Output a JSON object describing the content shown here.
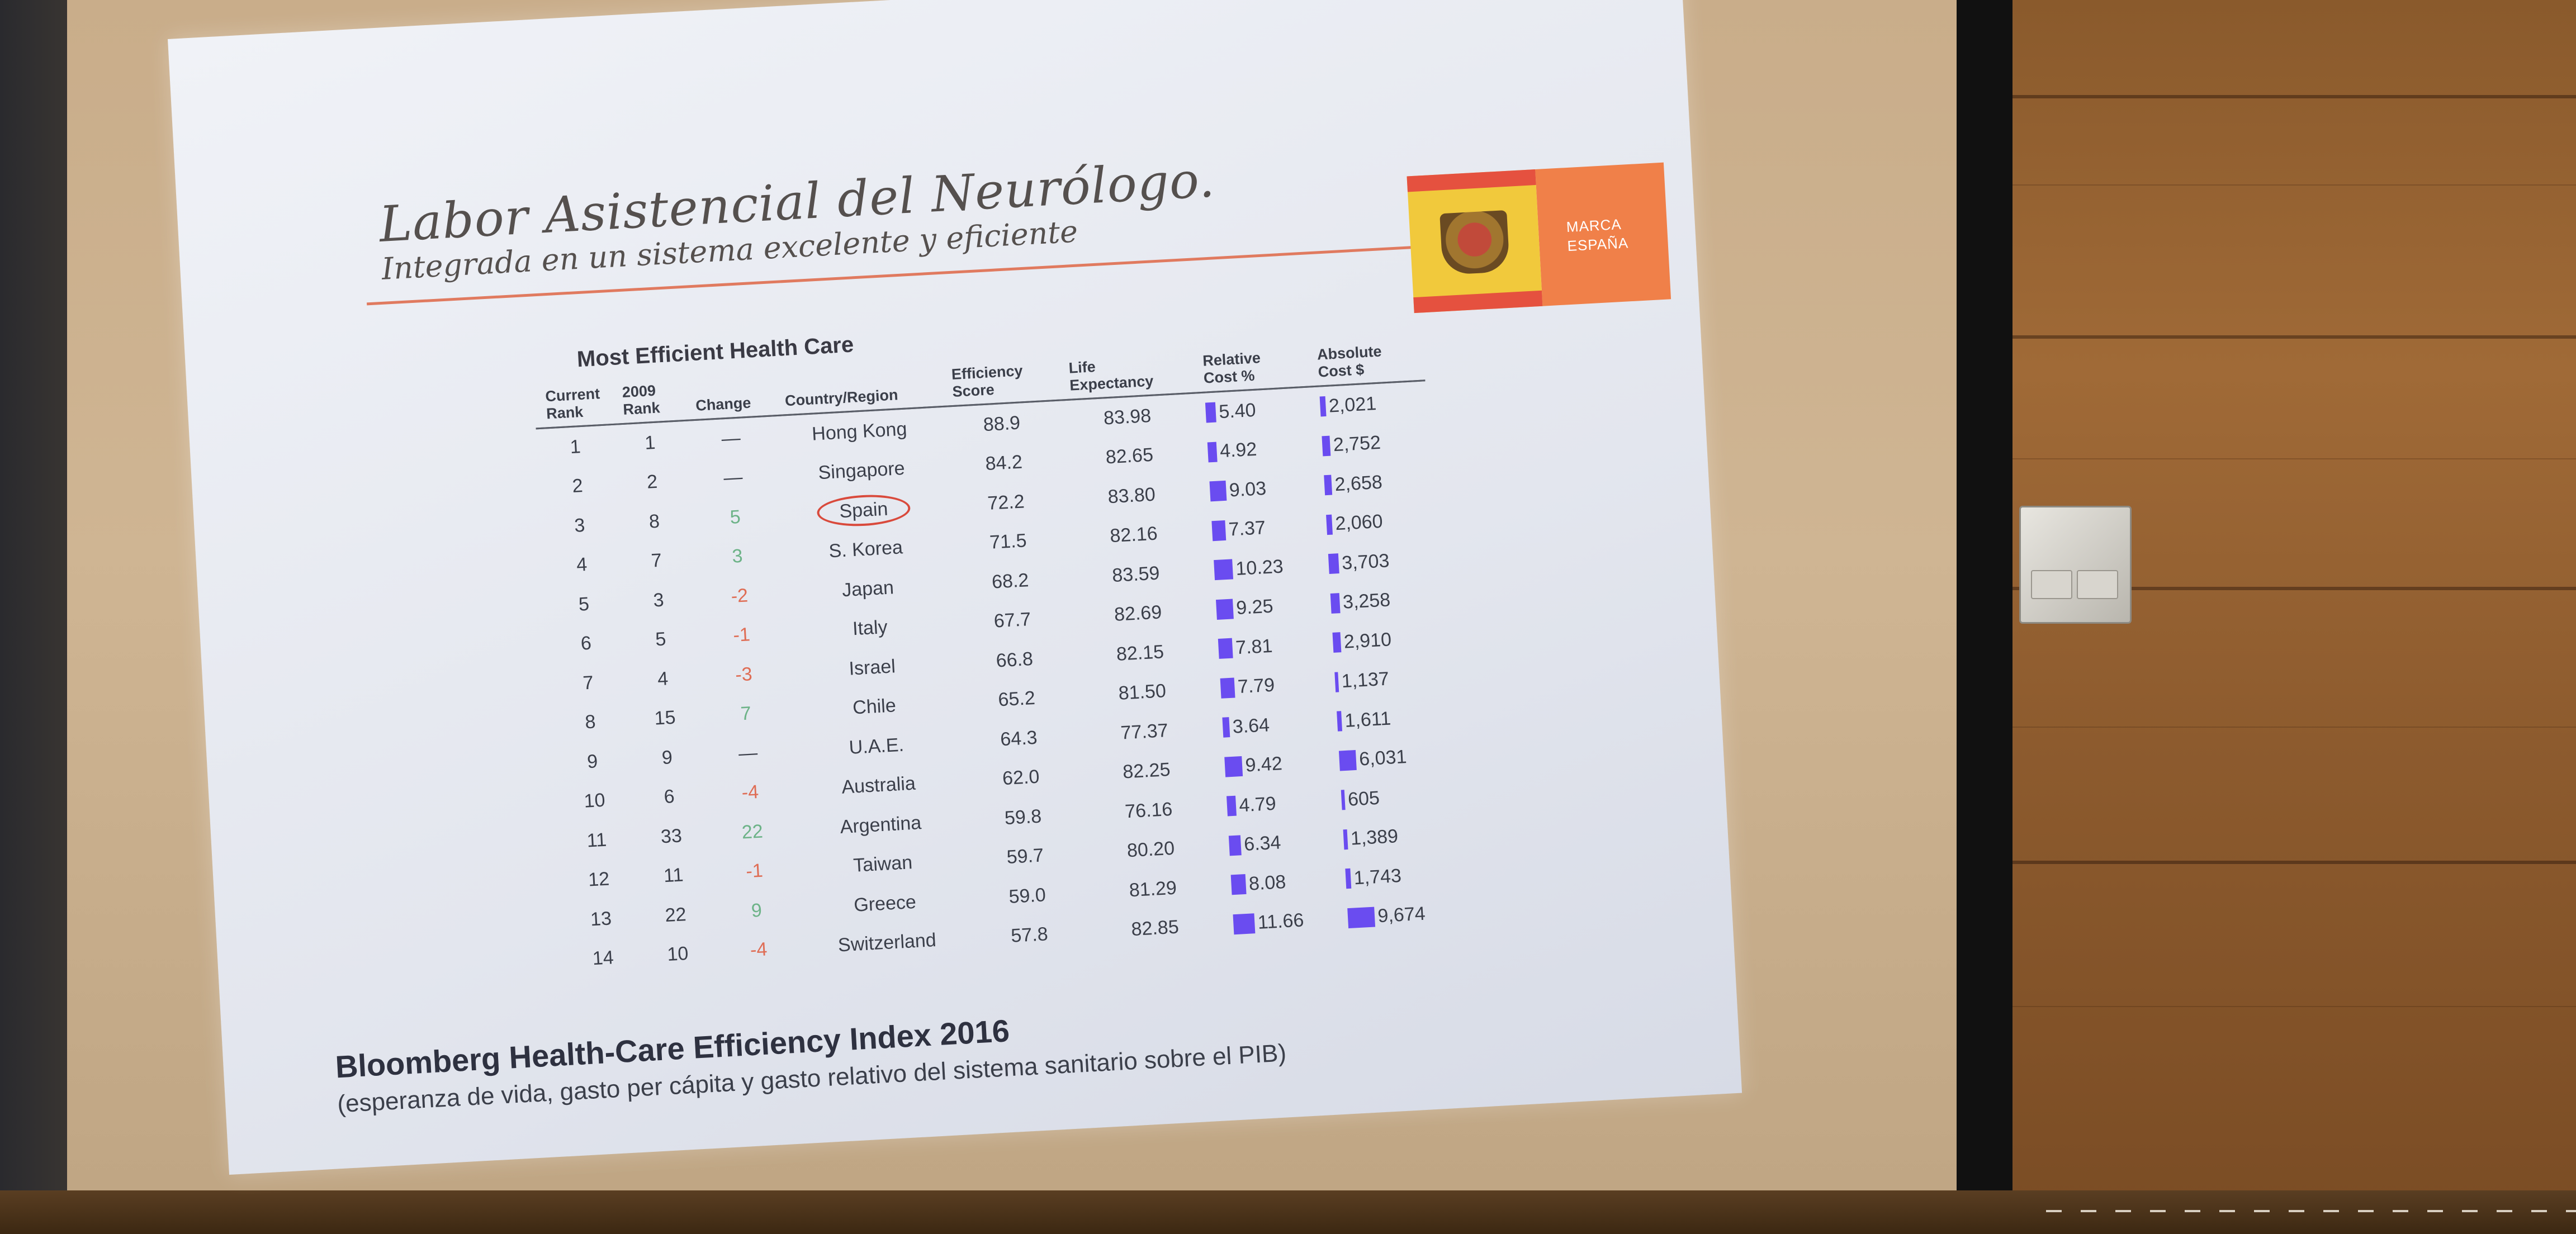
{
  "slide": {
    "title": "Labor Asistencial del Neurólogo.",
    "subtitle": "Integrada en un sistema excelente y eficiente",
    "brand_text_line1": "MARCA",
    "brand_text_line2": "ESPAÑA",
    "table_title": "Most Efficient Health Care",
    "footer_line1": "Bloomberg Health-Care Efficiency Index 2016",
    "footer_line2": "(esperanza de vida, gasto per cápita y gasto relativo del sistema sanitario sobre el PIB)"
  },
  "table": {
    "headers": {
      "current_rank": "Current Rank",
      "rank_2009": "2009 Rank",
      "change": "Change",
      "country": "Country/Region",
      "efficiency": "Efficiency Score",
      "life": "Life Expectancy",
      "relative_cost": "Relative Cost %",
      "absolute_cost": "Absolute Cost $"
    },
    "rows": [
      {
        "rank": "1",
        "prev": "1",
        "change": "—",
        "dir": "same",
        "country": "Hong Kong",
        "eff": "88.9",
        "life": "83.98",
        "rel": "5.40",
        "abs": "2,021",
        "rel_v": 5.4,
        "abs_v": 2021
      },
      {
        "rank": "2",
        "prev": "2",
        "change": "—",
        "dir": "same",
        "country": "Singapore",
        "eff": "84.2",
        "life": "82.65",
        "rel": "4.92",
        "abs": "2,752",
        "rel_v": 4.92,
        "abs_v": 2752
      },
      {
        "rank": "3",
        "prev": "8",
        "change": "5",
        "dir": "up",
        "country": "Spain",
        "eff": "72.2",
        "life": "83.80",
        "rel": "9.03",
        "abs": "2,658",
        "rel_v": 9.03,
        "abs_v": 2658
      },
      {
        "rank": "4",
        "prev": "7",
        "change": "3",
        "dir": "up",
        "country": "S. Korea",
        "eff": "71.5",
        "life": "82.16",
        "rel": "7.37",
        "abs": "2,060",
        "rel_v": 7.37,
        "abs_v": 2060
      },
      {
        "rank": "5",
        "prev": "3",
        "change": "-2",
        "dir": "down",
        "country": "Japan",
        "eff": "68.2",
        "life": "83.59",
        "rel": "10.23",
        "abs": "3,703",
        "rel_v": 10.23,
        "abs_v": 3703
      },
      {
        "rank": "6",
        "prev": "5",
        "change": "-1",
        "dir": "down",
        "country": "Italy",
        "eff": "67.7",
        "life": "82.69",
        "rel": "9.25",
        "abs": "3,258",
        "rel_v": 9.25,
        "abs_v": 3258
      },
      {
        "rank": "7",
        "prev": "4",
        "change": "-3",
        "dir": "down",
        "country": "Israel",
        "eff": "66.8",
        "life": "82.15",
        "rel": "7.81",
        "abs": "2,910",
        "rel_v": 7.81,
        "abs_v": 2910
      },
      {
        "rank": "8",
        "prev": "15",
        "change": "7",
        "dir": "up",
        "country": "Chile",
        "eff": "65.2",
        "life": "81.50",
        "rel": "7.79",
        "abs": "1,137",
        "rel_v": 7.79,
        "abs_v": 1137
      },
      {
        "rank": "9",
        "prev": "9",
        "change": "—",
        "dir": "same",
        "country": "U.A.E.",
        "eff": "64.3",
        "life": "77.37",
        "rel": "3.64",
        "abs": "1,611",
        "rel_v": 3.64,
        "abs_v": 1611
      },
      {
        "rank": "10",
        "prev": "6",
        "change": "-4",
        "dir": "down",
        "country": "Australia",
        "eff": "62.0",
        "life": "82.25",
        "rel": "9.42",
        "abs": "6,031",
        "rel_v": 9.42,
        "abs_v": 6031
      },
      {
        "rank": "11",
        "prev": "33",
        "change": "22",
        "dir": "up",
        "country": "Argentina",
        "eff": "59.8",
        "life": "76.16",
        "rel": "4.79",
        "abs": "605",
        "rel_v": 4.79,
        "abs_v": 605
      },
      {
        "rank": "12",
        "prev": "11",
        "change": "-1",
        "dir": "down",
        "country": "Taiwan",
        "eff": "59.7",
        "life": "80.20",
        "rel": "6.34",
        "abs": "1,389",
        "rel_v": 6.34,
        "abs_v": 1389
      },
      {
        "rank": "13",
        "prev": "22",
        "change": "9",
        "dir": "up",
        "country": "Greece",
        "eff": "59.0",
        "life": "81.29",
        "rel": "8.08",
        "abs": "1,743",
        "rel_v": 8.08,
        "abs_v": 1743
      },
      {
        "rank": "14",
        "prev": "10",
        "change": "-4",
        "dir": "down",
        "country": "Switzerland",
        "eff": "57.8",
        "life": "82.85",
        "rel": "11.66",
        "abs": "9,674",
        "rel_v": 11.66,
        "abs_v": 9674
      }
    ],
    "highlighted_country": "Spain"
  },
  "colors": {
    "bar": "#6a4cf0",
    "change_up": "#6db388",
    "change_down": "#df6d55",
    "highlight_ring": "#d94a3c",
    "title_rule": "#e07a5f"
  }
}
